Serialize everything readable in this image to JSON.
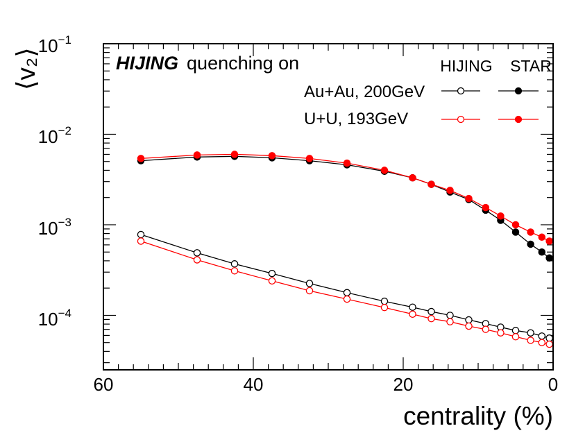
{
  "chart_data": {
    "type": "line",
    "y_scale": "log",
    "xlabel": "centrality (%)",
    "ylabel": "⟨v₂⟩",
    "xlim": [
      60,
      0
    ],
    "ylim": [
      2.5e-05,
      0.1
    ],
    "x_ticks": [
      60,
      40,
      20,
      0
    ],
    "y_ticks": [
      {
        "value": 0.1,
        "base": "10",
        "exp": "−1"
      },
      {
        "value": 0.01,
        "base": "10",
        "exp": "−2"
      },
      {
        "value": 0.001,
        "base": "10",
        "exp": "−3"
      },
      {
        "value": 0.0001,
        "base": "10",
        "exp": "−4"
      }
    ],
    "annotation": {
      "model": "HIJING",
      "text": "quenching on"
    },
    "legend": {
      "column_headers": [
        "HIJING",
        "STAR"
      ],
      "rows": [
        {
          "label": "Au+Au, 200GeV",
          "color": "#000000"
        },
        {
          "label": "U+U, 193GeV",
          "color": "#ff0000"
        }
      ]
    },
    "series": [
      {
        "name": "Au+Au, 200GeV STAR",
        "source": "STAR",
        "color": "#000000",
        "marker": "filled",
        "x": [
          55,
          47.5,
          42.5,
          37.5,
          32.5,
          27.5,
          22.5,
          18.75,
          16.25,
          13.75,
          11.25,
          9,
          7,
          5,
          3,
          1.5,
          0.5
        ],
        "y": [
          0.0051,
          0.0056,
          0.0057,
          0.0055,
          0.0051,
          0.0046,
          0.0039,
          0.0033,
          0.0028,
          0.0023,
          0.0019,
          0.00145,
          0.00112,
          0.00083,
          0.00061,
          0.0005,
          0.00043
        ]
      },
      {
        "name": "U+U, 193GeV STAR",
        "source": "STAR",
        "color": "#ff0000",
        "marker": "filled",
        "x": [
          55,
          47.5,
          42.5,
          37.5,
          32.5,
          27.5,
          22.5,
          18.75,
          16.25,
          13.75,
          11.25,
          9,
          7,
          5,
          3,
          1.5,
          0.5
        ],
        "y": [
          0.0054,
          0.0059,
          0.006,
          0.0058,
          0.0054,
          0.0048,
          0.004,
          0.0033,
          0.0028,
          0.0024,
          0.00195,
          0.00155,
          0.00125,
          0.001,
          0.00083,
          0.00073,
          0.00066
        ]
      },
      {
        "name": "Au+Au, 200GeV HIJING",
        "source": "HIJING",
        "color": "#000000",
        "marker": "open",
        "x": [
          55,
          47.5,
          42.5,
          37.5,
          32.5,
          27.5,
          22.5,
          18.75,
          16.25,
          13.75,
          11.25,
          9,
          7,
          5,
          3,
          1.5,
          0.5
        ],
        "y": [
          0.00078,
          0.00049,
          0.00037,
          0.00029,
          0.000225,
          0.000178,
          0.000143,
          0.000123,
          0.00011,
          0.0001,
          8.9e-05,
          8.1e-05,
          7.4e-05,
          6.8e-05,
          6.4e-05,
          5.9e-05,
          5.6e-05
        ]
      },
      {
        "name": "U+U, 193GeV HIJING",
        "source": "HIJING",
        "color": "#ff0000",
        "marker": "open",
        "x": [
          55,
          47.5,
          42.5,
          37.5,
          32.5,
          27.5,
          22.5,
          18.75,
          16.25,
          13.75,
          11.25,
          9,
          7,
          5,
          3,
          1.5,
          0.5
        ],
        "y": [
          0.00066,
          0.00041,
          0.00031,
          0.00024,
          0.000187,
          0.000151,
          0.000122,
          0.000103,
          9.2e-05,
          8.5e-05,
          7.6e-05,
          7e-05,
          6.4e-05,
          5.8e-05,
          5.3e-05,
          5e-05,
          4.8e-05
        ]
      }
    ]
  }
}
